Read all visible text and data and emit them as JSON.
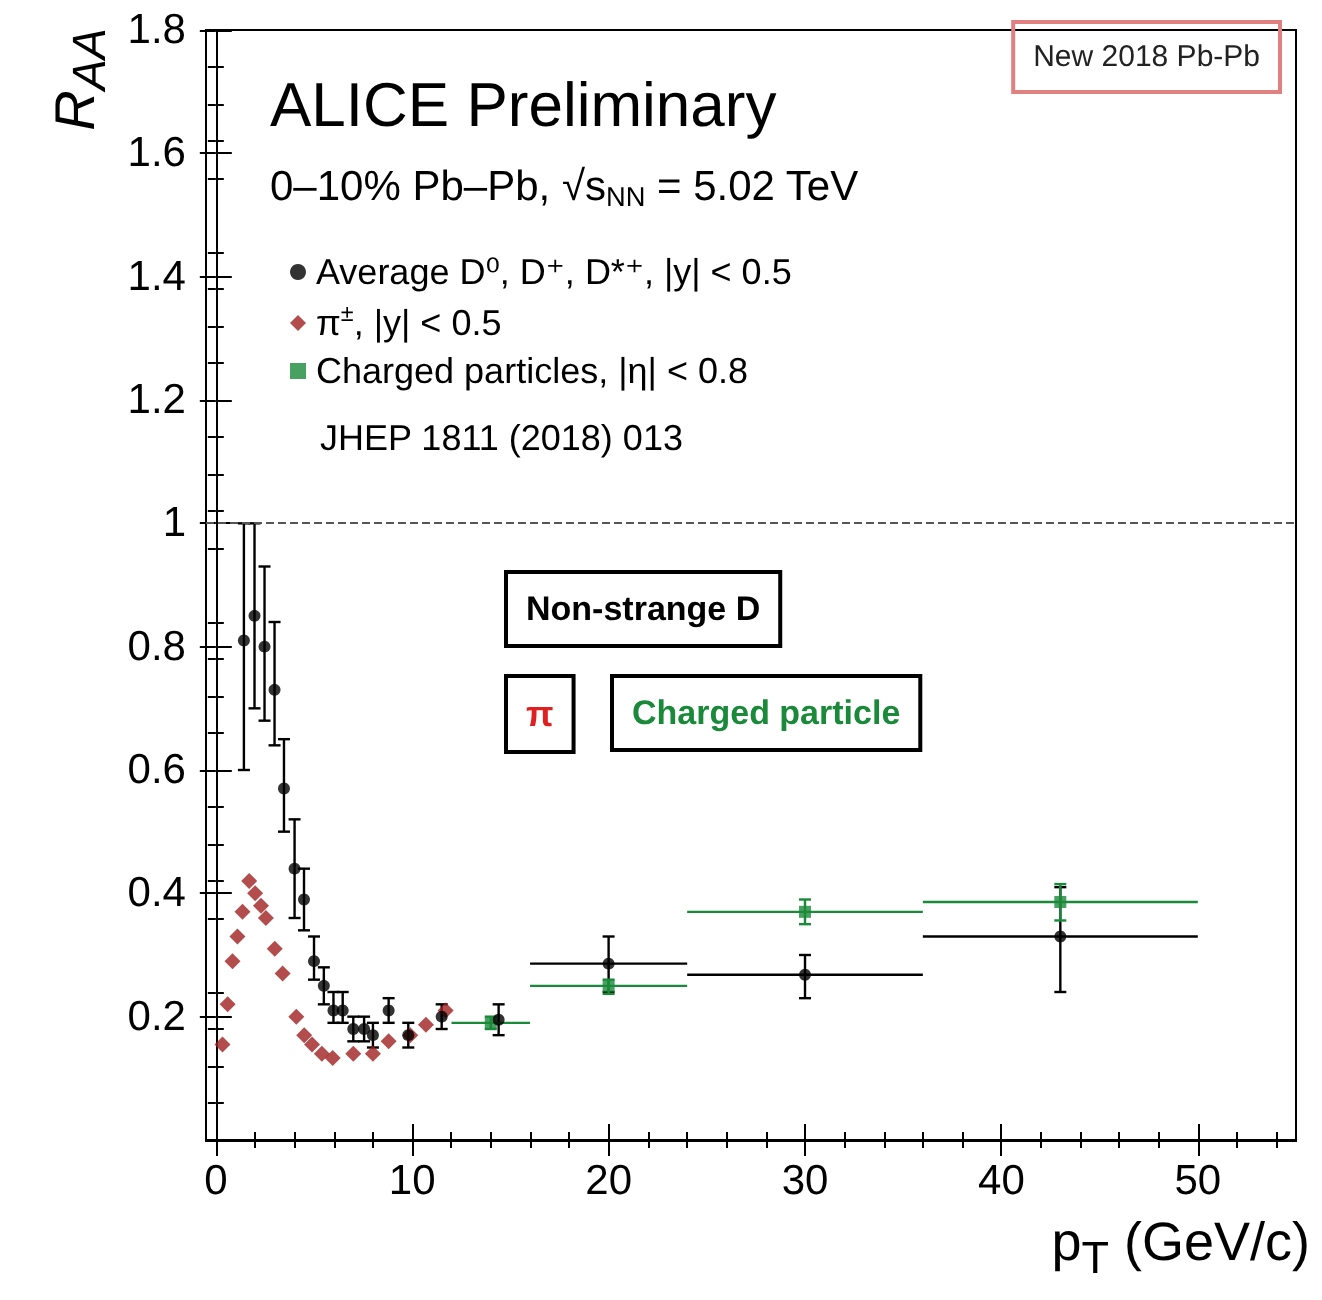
{
  "chart_data": {
    "type": "scatter",
    "title": "ALICE Preliminary",
    "subtitle": "0–10% Pb–Pb, √s$_{NN}$ = 5.02 TeV",
    "xlabel": "p$_{T}$ (GeV/c)",
    "ylabel": "R$_{AA}$",
    "annotations": [
      "JHEP 1811 (2018) 013",
      "New 2018 Pb-Pb",
      "Non-strange D",
      "π",
      "Charged particle"
    ],
    "series": [
      {
        "name": "Average D⁰, D⁺, D*⁺, |y| < 0.5",
        "color": "#000000",
        "marker": "circle",
        "x": [
          1.43,
          1.97,
          2.48,
          2.99,
          3.47,
          4.01,
          4.49,
          5.0,
          5.5,
          5.99,
          6.46,
          7.0,
          7.55,
          8.0,
          8.8,
          9.8,
          11.5,
          14.4,
          20,
          30,
          43
        ],
        "values": [
          0.81,
          0.85,
          0.8,
          0.73,
          0.57,
          0.44,
          0.39,
          0.29,
          0.25,
          0.21,
          0.21,
          0.18,
          0.18,
          0.17,
          0.21,
          0.17,
          0.2,
          0.195,
          0.286,
          0.268,
          0.33
        ],
        "errors": [
          [
            0.6,
            1.0
          ],
          [
            0.7,
            1.0
          ],
          [
            0.68,
            0.93
          ],
          [
            0.64,
            0.84
          ],
          [
            0.5,
            0.65
          ],
          [
            0.36,
            0.52
          ],
          [
            0.34,
            0.44
          ],
          [
            0.26,
            0.33
          ],
          [
            0.22,
            0.28
          ],
          [
            0.19,
            0.24
          ],
          [
            0.19,
            0.24
          ],
          [
            0.16,
            0.2
          ],
          [
            0.16,
            0.2
          ],
          [
            0.15,
            0.19
          ],
          [
            0.19,
            0.23
          ],
          [
            0.15,
            0.19
          ],
          [
            0.18,
            0.22
          ],
          [
            0.17,
            0.22
          ],
          [
            0.24,
            0.33
          ],
          [
            0.23,
            0.3
          ],
          [
            0.24,
            0.41
          ]
        ],
        "xerrors": [
          null,
          null,
          null,
          null,
          null,
          null,
          null,
          null,
          null,
          null,
          null,
          null,
          null,
          null,
          null,
          null,
          null,
          null,
          [
            16,
            24
          ],
          [
            24,
            36
          ],
          [
            36,
            50
          ]
        ]
      },
      {
        "name": "π$^{±}$, |y| < 0.5",
        "color": "#a02020",
        "marker": "diamond",
        "x": [
          0.34,
          0.6,
          0.85,
          1.1,
          1.36,
          1.7,
          2.0,
          2.3,
          2.55,
          3.0,
          3.4,
          4.1,
          4.5,
          4.9,
          5.4,
          5.95,
          7.0,
          8.0,
          8.8,
          9.9,
          10.7,
          11.7
        ],
        "values": [
          0.155,
          0.22,
          0.29,
          0.33,
          0.37,
          0.42,
          0.4,
          0.38,
          0.36,
          0.31,
          0.27,
          0.2,
          0.17,
          0.155,
          0.14,
          0.133,
          0.14,
          0.14,
          0.16,
          0.17,
          0.187,
          0.21
        ]
      },
      {
        "name": "Charged particles, |η| < 0.8",
        "color": "#1a8a3a",
        "marker": "square",
        "x": [
          14,
          20,
          30,
          43
        ],
        "values": [
          0.19,
          0.25,
          0.37,
          0.386
        ],
        "errors": [
          [
            0.18,
            0.2
          ],
          [
            0.237,
            0.26
          ],
          [
            0.35,
            0.39
          ],
          [
            0.356,
            0.415
          ]
        ],
        "xerrors": [
          [
            12,
            16
          ],
          [
            16,
            24
          ],
          [
            24,
            36
          ],
          [
            36,
            50
          ]
        ]
      }
    ],
    "xlim": [
      -0.5,
      55
    ],
    "ylim": [
      0,
      1.8
    ],
    "xticks": [
      0,
      10,
      20,
      30,
      40,
      50
    ],
    "yticks": [
      0.2,
      0.4,
      0.6,
      0.8,
      1,
      1.2,
      1.4,
      1.6,
      1.8
    ],
    "ref_lines": [
      {
        "axis": "y",
        "value": 1,
        "line_style": "dashed",
        "color": "#555555"
      }
    ],
    "grid": false,
    "legend": "top left"
  }
}
